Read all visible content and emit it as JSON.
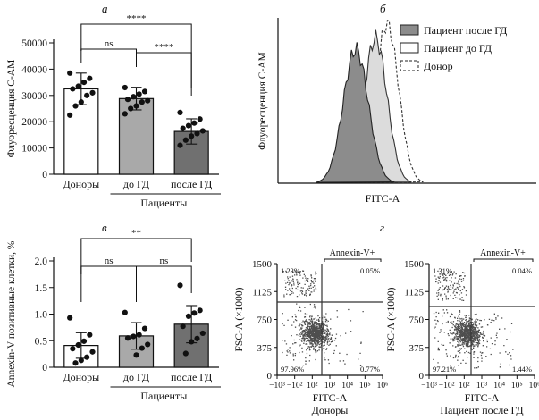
{
  "panel_labels": {
    "a": "а",
    "b": "б",
    "v": "в",
    "g": "г"
  },
  "colors": {
    "white_bar": "#ffffff",
    "light_bar": "#a9a9a9",
    "dark_bar": "#707070",
    "gate": "#333333",
    "dot": "#111111"
  },
  "chart_data": [
    {
      "type": "bar",
      "panel": "а",
      "ylabel": "Флуоресценция C-AM",
      "categories": [
        "Доноры",
        "до ГД",
        "после ГД"
      ],
      "group_label": "Пациенты",
      "ylim": [
        0,
        50000
      ],
      "yticks": [
        "0",
        "10000",
        "20000",
        "30000",
        "40000",
        "50000"
      ],
      "values": [
        32500,
        28800,
        16300
      ],
      "errors": [
        6000,
        4300,
        4800
      ],
      "points": [
        [
          38500,
          36500,
          35000,
          33500,
          32500,
          31000,
          30000,
          27500,
          26000,
          22500
        ],
        [
          33000,
          31500,
          30500,
          29500,
          28500,
          28000,
          27500,
          26000,
          25000,
          23000
        ],
        [
          23500,
          21000,
          19500,
          18500,
          17500,
          16500,
          15500,
          14500,
          13000,
          11000
        ]
      ],
      "significance": [
        {
          "from": 0,
          "to": 1,
          "label": "ns"
        },
        {
          "from": 1,
          "to": 2,
          "label": "****"
        },
        {
          "from": 0,
          "to": 2,
          "label": "****"
        }
      ]
    },
    {
      "type": "area",
      "panel": "б",
      "xlabel": "FITC-A",
      "ylabel": "Флуоресценция C-AM",
      "series": [
        {
          "name": "Пациент после ГД",
          "style": "filled-dark"
        },
        {
          "name": "Пациент до ГД",
          "style": "filled-light"
        },
        {
          "name": "Донор",
          "style": "dashed"
        }
      ],
      "legend_position": "top-right"
    },
    {
      "type": "bar",
      "panel": "в",
      "ylabel": "Annexin-V позитивные клетки, %",
      "categories": [
        "Доноры",
        "до ГД",
        "после ГД"
      ],
      "group_label": "Пациенты",
      "ylim": [
        0,
        2.0
      ],
      "yticks": [
        "0",
        "0.5",
        "1.0",
        "1.5",
        "2.0"
      ],
      "values": [
        0.41,
        0.59,
        0.81
      ],
      "errors": [
        0.24,
        0.25,
        0.35
      ],
      "points": [
        [
          0.93,
          0.61,
          0.49,
          0.42,
          0.35,
          0.29,
          0.19,
          0.13,
          0.08
        ],
        [
          1.03,
          0.73,
          0.61,
          0.58,
          0.55,
          0.43,
          0.36,
          0.23
        ],
        [
          1.54,
          1.07,
          1.02,
          0.96,
          0.77,
          0.64,
          0.54,
          0.48,
          0.26
        ]
      ],
      "significance": [
        {
          "from": 0,
          "to": 1,
          "label": "ns"
        },
        {
          "from": 1,
          "to": 2,
          "label": "ns"
        },
        {
          "from": 0,
          "to": 2,
          "label": "**"
        }
      ]
    },
    {
      "type": "scatter",
      "panel": "г",
      "plots": [
        {
          "title": "Доноры",
          "xlabel": "FITC-A",
          "ylabel": "FSC-A (×1000)",
          "gate_label": "Annexin-V+",
          "quadrants": {
            "top_left": "1.23%",
            "top_right": "0.05%",
            "bottom_left": "97.96%",
            "bottom_right": "0.77%"
          },
          "yticks": [
            "1500",
            "1125",
            "750",
            "375",
            "0"
          ],
          "xticks": [
            "−10³",
            "−10²",
            "10²",
            "10³",
            "10⁴",
            "10⁵",
            "10⁶"
          ]
        },
        {
          "title": "Пациент после ГД",
          "xlabel": "FITC-A",
          "ylabel": "FSC-A (×1000)",
          "gate_label": "Annexin-V+",
          "quadrants": {
            "top_left": "1.31%",
            "top_right": "0.04%",
            "bottom_left": "97.21%",
            "bottom_right": "1.44%"
          },
          "yticks": [
            "1500",
            "1125",
            "750",
            "375",
            "0"
          ],
          "xticks": [
            "−10³",
            "−10²",
            "10²",
            "10³",
            "10⁴",
            "10⁵",
            "10⁶"
          ]
        }
      ]
    }
  ]
}
